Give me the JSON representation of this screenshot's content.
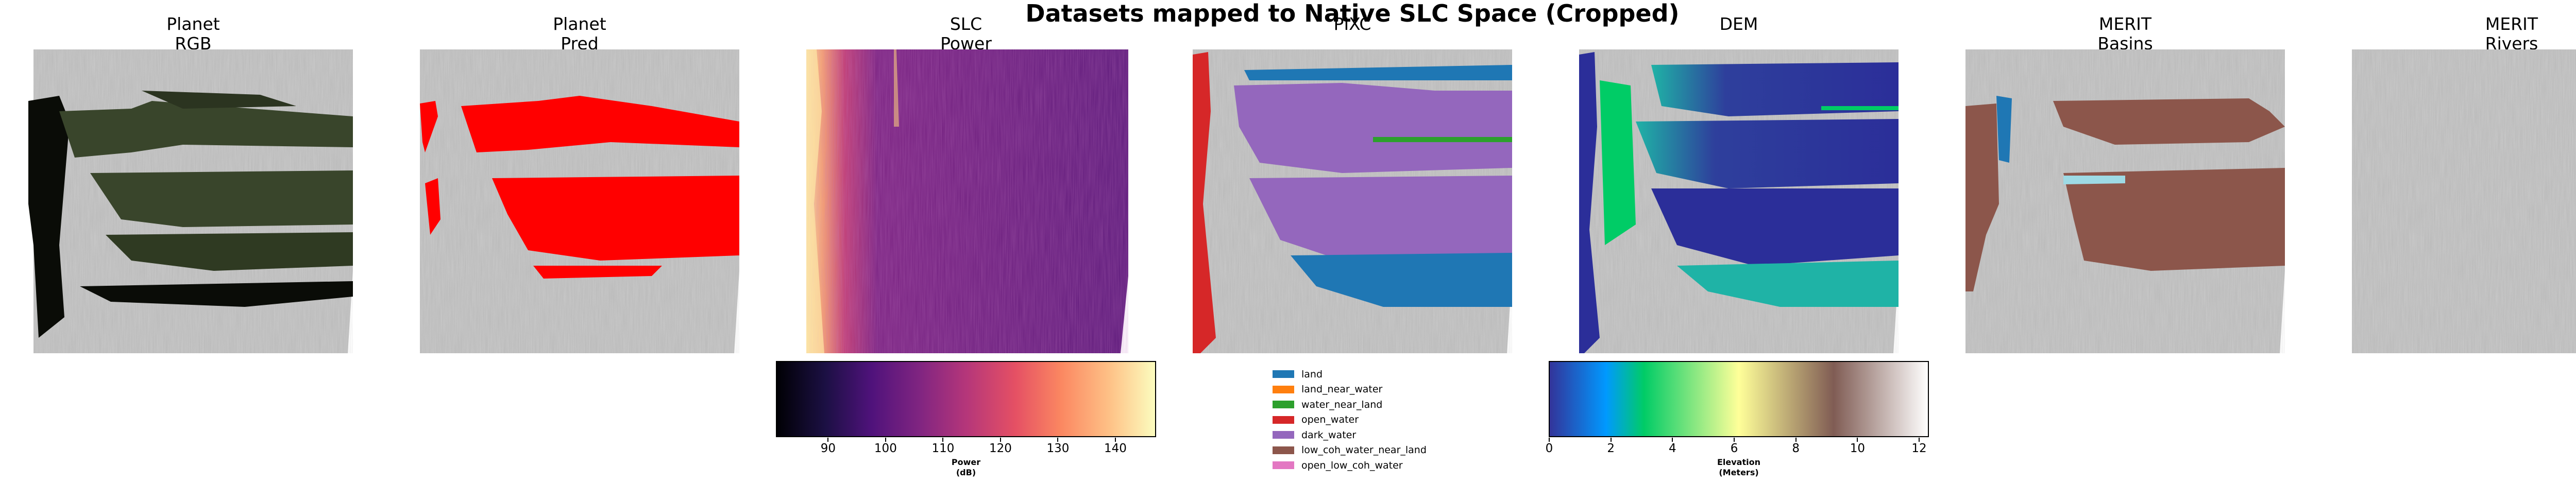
{
  "figure": {
    "title": "Datasets mapped to Native SLC Space (Cropped)"
  },
  "panels": [
    {
      "id": "planet-rgb",
      "line1": "Planet",
      "line2": "RGB"
    },
    {
      "id": "planet-pred",
      "line1": "Planet",
      "line2": "Pred"
    },
    {
      "id": "slc-power",
      "line1": "SLC",
      "line2": "Power"
    },
    {
      "id": "pixc",
      "line1": "PIXC",
      "line2": ""
    },
    {
      "id": "dem",
      "line1": "DEM",
      "line2": ""
    },
    {
      "id": "merit-basins",
      "line1": "MERIT",
      "line2": "Basins"
    },
    {
      "id": "merit-rivers",
      "line1": "MERIT",
      "line2": "Rivers"
    }
  ],
  "power_colorbar": {
    "colormap": "magma",
    "ticks": [
      "90",
      "100",
      "110",
      "120",
      "130",
      "140"
    ],
    "label_line1": "Power",
    "label_line2": "(dB)",
    "range": [
      81,
      147
    ]
  },
  "pixc_legend": {
    "items": [
      {
        "label": "land",
        "color": "#1f77b4"
      },
      {
        "label": "land_near_water",
        "color": "#ff7f0e"
      },
      {
        "label": "water_near_land",
        "color": "#2ca02c"
      },
      {
        "label": "open_water",
        "color": "#d62728"
      },
      {
        "label": "dark_water",
        "color": "#9467bd"
      },
      {
        "label": "low_coh_water_near_land",
        "color": "#8c564b"
      },
      {
        "label": "open_low_coh_water",
        "color": "#e377c2"
      }
    ]
  },
  "elevation_colorbar": {
    "colormap": "terrain",
    "ticks": [
      "0",
      "2",
      "4",
      "6",
      "8",
      "10",
      "12"
    ],
    "label_line1": "Elevation",
    "label_line2": "(Meters)",
    "range": [
      0,
      12.3
    ]
  },
  "colors": {
    "background_gray": "#b9b9b9",
    "rgb_dark_green": "#39452b",
    "pred_red": "#ff0000",
    "slc_purple": "#6a1d7e",
    "merit_brown": "#8c564b",
    "merit_blue": "#1f77b4"
  }
}
